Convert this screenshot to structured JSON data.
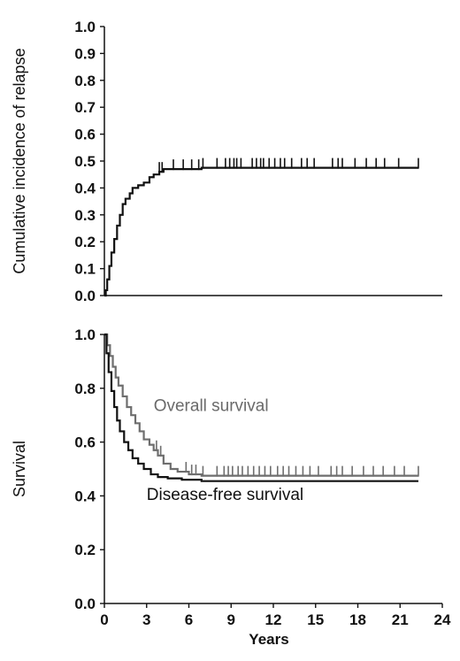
{
  "chart_data": [
    {
      "type": "line",
      "panel": "top",
      "title": "",
      "ylabel": "Cumulative incidence of relapse",
      "xlabel": "",
      "xlim": [
        0,
        24
      ],
      "ylim": [
        0,
        1
      ],
      "yticks": [
        "0.0",
        "0.1",
        "0.2",
        "0.3",
        "0.4",
        "0.5",
        "0.6",
        "0.7",
        "0.8",
        "0.9",
        "1.0"
      ],
      "grid": false,
      "series": [
        {
          "color": "#111111",
          "step": true,
          "x": [
            0,
            0.1,
            0.2,
            0.35,
            0.5,
            0.7,
            0.9,
            1.1,
            1.3,
            1.5,
            1.8,
            2.0,
            2.4,
            2.8,
            3.2,
            3.5,
            3.9,
            4.2,
            5.0,
            6.9,
            22.3
          ],
          "y": [
            0,
            0.02,
            0.06,
            0.11,
            0.16,
            0.21,
            0.26,
            0.3,
            0.34,
            0.36,
            0.38,
            0.4,
            0.41,
            0.42,
            0.44,
            0.45,
            0.46,
            0.47,
            0.47,
            0.475,
            0.475
          ],
          "censored": [
            3.9,
            4.1,
            4.9,
            5.6,
            6.2,
            6.7,
            7.0,
            8.0,
            8.6,
            8.9,
            9.2,
            9.4,
            9.7,
            10.5,
            10.8,
            11.1,
            11.3,
            11.7,
            12.1,
            12.5,
            12.8,
            13.3,
            14.0,
            14.4,
            14.9,
            16.2,
            16.6,
            16.9,
            17.8,
            18.6,
            19.3,
            19.9,
            20.9,
            22.3
          ]
        }
      ]
    },
    {
      "type": "line",
      "panel": "bottom",
      "title": "",
      "ylabel": "Survival",
      "xlabel": "Years",
      "xlim": [
        0,
        24
      ],
      "ylim": [
        0,
        1
      ],
      "xticks": [
        "0",
        "3",
        "6",
        "9",
        "12",
        "15",
        "18",
        "21",
        "24"
      ],
      "yticks": [
        "0.0",
        "0.2",
        "0.4",
        "0.6",
        "0.8",
        "1.0"
      ],
      "grid": false,
      "annotations": [
        {
          "text": "Overall survival",
          "x": 3.5,
          "y": 0.715,
          "color": "#6a6a6a"
        },
        {
          "text": "Disease-free survival",
          "x": 3.0,
          "y": 0.385,
          "color": "#111111"
        }
      ],
      "series": [
        {
          "name": "Overall survival",
          "color": "#6e6e6e",
          "step": true,
          "x": [
            0,
            0.2,
            0.4,
            0.6,
            0.8,
            1.0,
            1.3,
            1.6,
            1.9,
            2.2,
            2.5,
            2.8,
            3.2,
            3.5,
            3.8,
            4.2,
            4.7,
            5.2,
            6.0,
            6.9,
            22.3
          ],
          "y": [
            1.0,
            0.96,
            0.92,
            0.88,
            0.84,
            0.81,
            0.77,
            0.73,
            0.7,
            0.67,
            0.64,
            0.61,
            0.59,
            0.57,
            0.55,
            0.52,
            0.5,
            0.49,
            0.48,
            0.475,
            0.475
          ],
          "censored": [
            3.7,
            4.0,
            5.8,
            6.2,
            6.5,
            7.0,
            8.0,
            8.5,
            8.8,
            9.1,
            9.5,
            9.8,
            10.2,
            10.6,
            11.0,
            11.4,
            11.8,
            12.3,
            12.7,
            13.1,
            13.6,
            14.1,
            14.6,
            15.2,
            16.1,
            16.5,
            16.9,
            17.6,
            18.4,
            19.1,
            19.8,
            20.6,
            21.3,
            22.3
          ]
        },
        {
          "name": "Disease-free survival",
          "color": "#111111",
          "step": true,
          "x": [
            0,
            0.15,
            0.3,
            0.5,
            0.7,
            0.9,
            1.1,
            1.4,
            1.7,
            2.0,
            2.4,
            2.8,
            3.3,
            3.8,
            4.5,
            5.5,
            6.9,
            22.3
          ],
          "y": [
            1.0,
            0.93,
            0.86,
            0.79,
            0.73,
            0.68,
            0.64,
            0.6,
            0.57,
            0.54,
            0.52,
            0.5,
            0.48,
            0.47,
            0.465,
            0.46,
            0.455,
            0.455
          ],
          "censored": []
        }
      ]
    }
  ]
}
